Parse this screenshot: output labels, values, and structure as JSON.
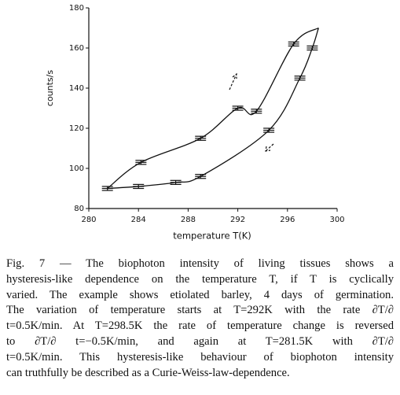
{
  "chart_data": {
    "type": "line",
    "x_label": "temperature T(K)",
    "y_label": "counts/s",
    "xlim": [
      280,
      300
    ],
    "xticks": [
      280,
      284,
      288,
      292,
      296,
      300
    ],
    "ylim": [
      80,
      180
    ],
    "yticks": [
      80,
      100,
      120,
      140,
      160,
      180
    ],
    "series": [
      {
        "color": "#111111",
        "x": [
          281.5,
          284.2,
          289,
          292,
          293.5,
          296.5,
          298.5
        ],
        "values": [
          90,
          103,
          115,
          130,
          128.5,
          162,
          170
        ],
        "errors": [
          1,
          1,
          1,
          1,
          1,
          1,
          null
        ]
      },
      {
        "color": "#111111",
        "x": [
          298.5,
          298,
          297,
          294.5,
          289,
          287,
          284,
          281.5
        ],
        "values": [
          170,
          160,
          145,
          119,
          96,
          93,
          91,
          90
        ],
        "errors": [
          null,
          1,
          1,
          1,
          1,
          1,
          1,
          null
        ]
      }
    ]
  },
  "caption": [
    "Fig. 7 — The biophoton intensity of living tissues shows a",
    "hysteresis-like dependence on the temperature T, if T is cyclically",
    "varied. The example shows etiolated barley, 4 days of germination.",
    "The variation of temperature starts at T=292K with the rate ∂T/∂",
    "t=0.5K/min. At T=298.5K the rate of temperature change is reversed",
    "to ∂T/∂ t=−0.5K/min, and again at T=281.5K with ∂T/∂",
    "t=0.5K/min. This hysteresis-like behaviour of biophoton intensity",
    "can truthfully be described as a Curie-Weiss-law-dependence."
  ]
}
